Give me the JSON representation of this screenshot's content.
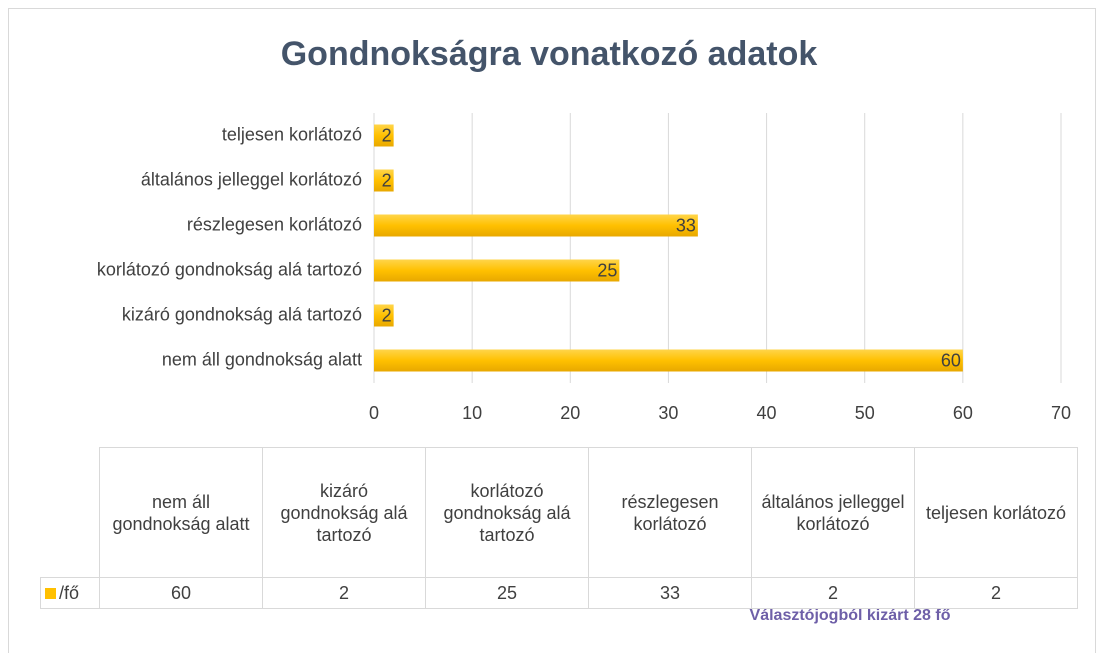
{
  "chart_data": {
    "type": "bar",
    "orientation": "horizontal",
    "title": "Gondnokságra vonatkozó adatok",
    "categories": [
      "nem áll gondnokság alatt",
      "kizáró gondnokság alá tartozó",
      "korlátozó gondnokság alá tartozó",
      "részlegesen korlátozó",
      "általános jelleggel korlátozó",
      "teljesen korlátozó"
    ],
    "series": [
      {
        "name": "/fő",
        "color": "#ffc000",
        "values": [
          60,
          2,
          25,
          33,
          2,
          2
        ]
      }
    ],
    "xlim": [
      0,
      70
    ],
    "xticks": [
      0,
      10,
      20,
      30,
      40,
      50,
      60,
      70
    ],
    "grid": true,
    "annotation": "Választójogból kizárt 28 fő"
  }
}
